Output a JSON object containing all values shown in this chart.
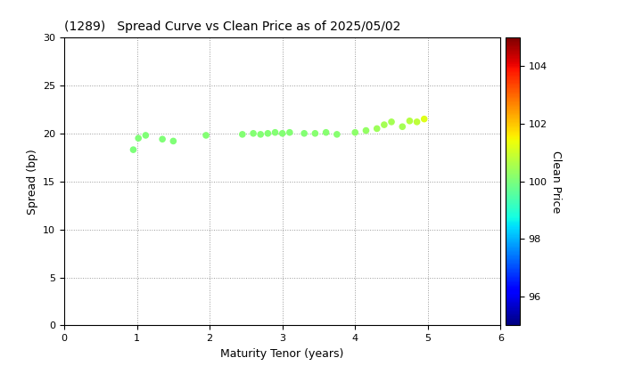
{
  "title": "(1289)   Spread Curve vs Clean Price as of 2025/05/02",
  "xlabel": "Maturity Tenor (years)",
  "ylabel": "Spread (bp)",
  "colorbar_label": "Clean Price",
  "xlim": [
    0,
    6
  ],
  "ylim": [
    0,
    30
  ],
  "xticks": [
    0,
    1,
    2,
    3,
    4,
    5,
    6
  ],
  "yticks": [
    0,
    5,
    10,
    15,
    20,
    25,
    30
  ],
  "cbar_min": 95,
  "cbar_max": 105,
  "cbar_ticks": [
    96,
    98,
    100,
    102,
    104
  ],
  "points": [
    {
      "tenor": 0.95,
      "spread": 18.3,
      "price": 100.0
    },
    {
      "tenor": 1.02,
      "spread": 19.5,
      "price": 100.05
    },
    {
      "tenor": 1.12,
      "spread": 19.8,
      "price": 100.05
    },
    {
      "tenor": 1.35,
      "spread": 19.4,
      "price": 100.05
    },
    {
      "tenor": 1.5,
      "spread": 19.2,
      "price": 100.05
    },
    {
      "tenor": 1.95,
      "spread": 19.8,
      "price": 100.1
    },
    {
      "tenor": 2.45,
      "spread": 19.9,
      "price": 100.1
    },
    {
      "tenor": 2.6,
      "spread": 20.0,
      "price": 100.1
    },
    {
      "tenor": 2.7,
      "spread": 19.9,
      "price": 100.1
    },
    {
      "tenor": 2.8,
      "spread": 20.0,
      "price": 100.1
    },
    {
      "tenor": 2.9,
      "spread": 20.1,
      "price": 100.1
    },
    {
      "tenor": 3.0,
      "spread": 20.0,
      "price": 100.1
    },
    {
      "tenor": 3.1,
      "spread": 20.1,
      "price": 100.1
    },
    {
      "tenor": 3.3,
      "spread": 20.0,
      "price": 100.1
    },
    {
      "tenor": 3.45,
      "spread": 20.0,
      "price": 100.15
    },
    {
      "tenor": 3.6,
      "spread": 20.1,
      "price": 100.15
    },
    {
      "tenor": 3.75,
      "spread": 19.9,
      "price": 100.15
    },
    {
      "tenor": 4.0,
      "spread": 20.1,
      "price": 100.2
    },
    {
      "tenor": 4.15,
      "spread": 20.3,
      "price": 100.3
    },
    {
      "tenor": 4.3,
      "spread": 20.5,
      "price": 100.4
    },
    {
      "tenor": 4.4,
      "spread": 20.9,
      "price": 100.5
    },
    {
      "tenor": 4.5,
      "spread": 21.2,
      "price": 100.5
    },
    {
      "tenor": 4.65,
      "spread": 20.7,
      "price": 100.5
    },
    {
      "tenor": 4.75,
      "spread": 21.3,
      "price": 100.7
    },
    {
      "tenor": 4.85,
      "spread": 21.2,
      "price": 100.8
    },
    {
      "tenor": 4.95,
      "spread": 21.5,
      "price": 101.2
    }
  ]
}
